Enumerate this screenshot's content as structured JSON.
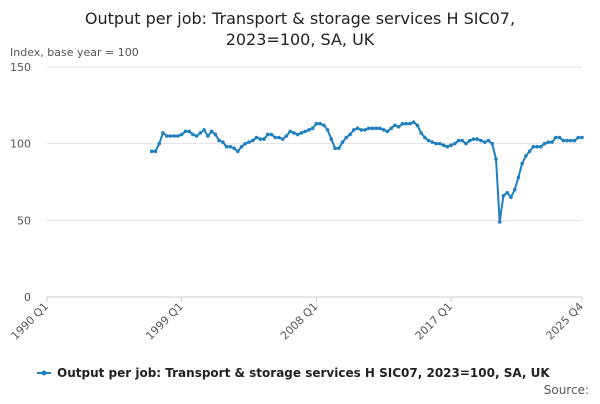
{
  "chart_data": {
    "type": "line",
    "title": [
      "Output per job: Transport & storage services H SIC07,",
      "2023=100, SA, UK"
    ],
    "y_label": "Index, base year = 100",
    "source": "Source:",
    "xlim": [
      "1990 Q1",
      "2025 Q4"
    ],
    "xticks": [
      "1990 Q1",
      "1999 Q1",
      "2008 Q1",
      "2017 Q1",
      "2025 Q4"
    ],
    "ylim": [
      0,
      150
    ],
    "yticks": [
      0,
      50,
      100,
      150
    ],
    "grid": true,
    "legend": "bottom",
    "x": [
      "1997 Q1",
      "1997 Q2",
      "1997 Q3",
      "1997 Q4",
      "1998 Q1",
      "1998 Q2",
      "1998 Q3",
      "1998 Q4",
      "1999 Q1",
      "1999 Q2",
      "1999 Q3",
      "1999 Q4",
      "2000 Q1",
      "2000 Q2",
      "2000 Q3",
      "2000 Q4",
      "2001 Q1",
      "2001 Q2",
      "2001 Q3",
      "2001 Q4",
      "2002 Q1",
      "2002 Q2",
      "2002 Q3",
      "2002 Q4",
      "2003 Q1",
      "2003 Q2",
      "2003 Q3",
      "2003 Q4",
      "2004 Q1",
      "2004 Q2",
      "2004 Q3",
      "2004 Q4",
      "2005 Q1",
      "2005 Q2",
      "2005 Q3",
      "2005 Q4",
      "2006 Q1",
      "2006 Q2",
      "2006 Q3",
      "2006 Q4",
      "2007 Q1",
      "2007 Q2",
      "2007 Q3",
      "2007 Q4",
      "2008 Q1",
      "2008 Q2",
      "2008 Q3",
      "2008 Q4",
      "2009 Q1",
      "2009 Q2",
      "2009 Q3",
      "2009 Q4",
      "2010 Q1",
      "2010 Q2",
      "2010 Q3",
      "2010 Q4",
      "2011 Q1",
      "2011 Q2",
      "2011 Q3",
      "2011 Q4",
      "2012 Q1",
      "2012 Q2",
      "2012 Q3",
      "2012 Q4",
      "2013 Q1",
      "2013 Q2",
      "2013 Q3",
      "2013 Q4",
      "2014 Q1",
      "2014 Q2",
      "2014 Q3",
      "2014 Q4",
      "2015 Q1",
      "2015 Q2",
      "2015 Q3",
      "2015 Q4",
      "2016 Q1",
      "2016 Q2",
      "2016 Q3",
      "2016 Q4",
      "2017 Q1",
      "2017 Q2",
      "2017 Q3",
      "2017 Q4",
      "2018 Q1",
      "2018 Q2",
      "2018 Q3",
      "2018 Q4",
      "2019 Q1",
      "2019 Q2",
      "2019 Q3",
      "2019 Q4",
      "2020 Q1",
      "2020 Q2",
      "2020 Q3",
      "2020 Q4",
      "2021 Q1",
      "2021 Q2",
      "2021 Q3",
      "2021 Q4",
      "2022 Q1",
      "2022 Q2",
      "2022 Q3",
      "2022 Q4",
      "2023 Q1",
      "2023 Q2",
      "2023 Q3",
      "2023 Q4",
      "2024 Q1",
      "2024 Q2",
      "2024 Q3",
      "2024 Q4",
      "2025 Q1",
      "2025 Q2",
      "2025 Q3",
      "2025 Q4"
    ],
    "series": [
      {
        "name": "Output per job: Transport & storage services H SIC07, 2023=100, SA, UK",
        "color": "#1f7fbf",
        "values": [
          95,
          95,
          100,
          107,
          105,
          105,
          105,
          105,
          106,
          108,
          108,
          106,
          105,
          107,
          109,
          105,
          108,
          106,
          102,
          101,
          98,
          98,
          97,
          95,
          98,
          100,
          101,
          102,
          104,
          103,
          103,
          106,
          106,
          104,
          104,
          103,
          105,
          108,
          107,
          106,
          107,
          108,
          109,
          110,
          113,
          113,
          112,
          109,
          103,
          97,
          97,
          101,
          104,
          106,
          109,
          110,
          109,
          109,
          110,
          110,
          110,
          110,
          109,
          108,
          110,
          112,
          111,
          113,
          113,
          113,
          114,
          112,
          107,
          104,
          102,
          101,
          100,
          100,
          99,
          98,
          99,
          100,
          102,
          102,
          100,
          102,
          103,
          103,
          102,
          101,
          102,
          100,
          90,
          49,
          66,
          68,
          65,
          70,
          78,
          87,
          92,
          95,
          98,
          98,
          98,
          100,
          101,
          101,
          104,
          104,
          102,
          102,
          102,
          102,
          104,
          104
        ]
      }
    ]
  }
}
